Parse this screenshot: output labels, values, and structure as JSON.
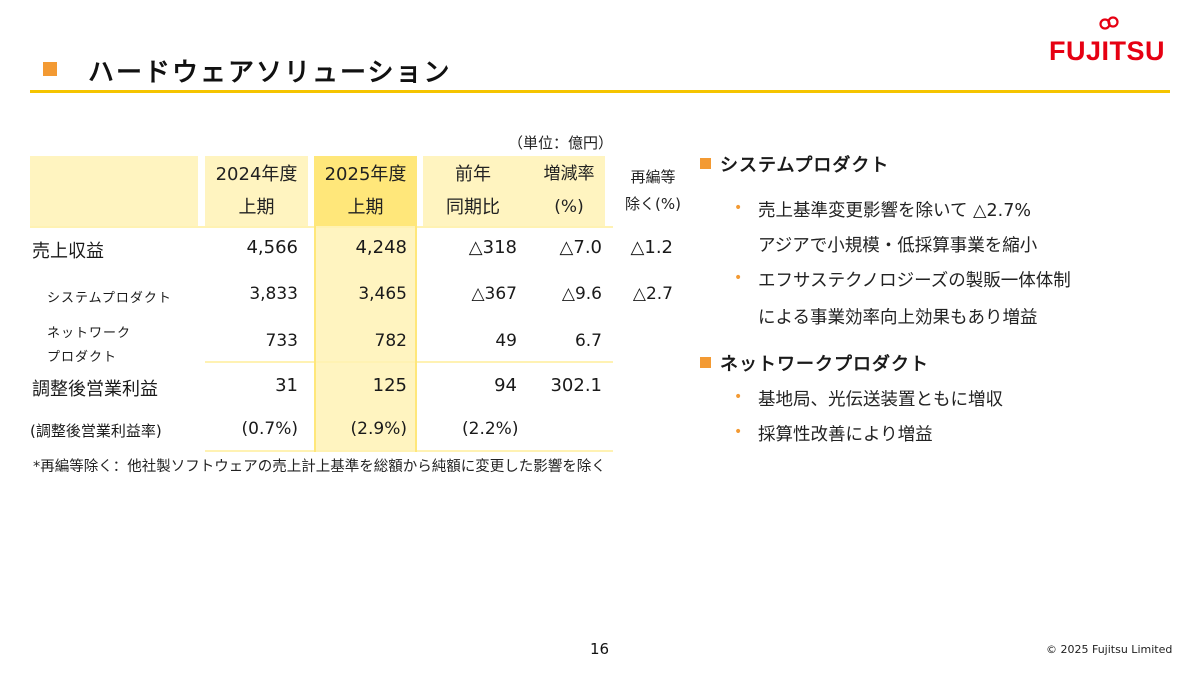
{
  "colors": {
    "accent_orange": "#f39a33",
    "accent_yellow": "#f5c400",
    "brand_red": "#e60012"
  },
  "header": {
    "title": "ハードウェアソリューション",
    "logo_text": "FUJITSU",
    "logo_icon": "infinity-icon"
  },
  "unit_note": "（単位：億円）",
  "table": {
    "columns": [
      {
        "line1": "2024年度",
        "line2": "上期"
      },
      {
        "line1": "2025年度",
        "line2": "上期"
      },
      {
        "line1": "前年",
        "line2": "同期比"
      },
      {
        "line1": "増減率",
        "line2": "(%)"
      },
      {
        "line1": "再編等",
        "line2": "除く(%)"
      }
    ],
    "rows": [
      {
        "label": "売上収益",
        "values": [
          "4,566",
          "4,248",
          "△318",
          "△7.0",
          "△1.2"
        ]
      },
      {
        "label": "システムプロダクト",
        "values": [
          "3,833",
          "3,465",
          "△367",
          "△9.6",
          "△2.7"
        ]
      },
      {
        "label_line1": "ネットワーク",
        "label_line2": "プロダクト",
        "values": [
          "733",
          "782",
          "49",
          "6.7",
          ""
        ]
      },
      {
        "label": "調整後営業利益",
        "values": [
          "31",
          "125",
          "94",
          "302.1",
          ""
        ]
      },
      {
        "label": "(調整後営業利益率)",
        "values": [
          "(0.7%)",
          "(2.9%)",
          "(2.2%)",
          "",
          ""
        ]
      }
    ],
    "footnote": "*再編等除く：他社製ソフトウェアの売上計上基準を総額から純額に変更した影響を除く"
  },
  "sections": [
    {
      "heading": "システムプロダクト",
      "bullets": [
        {
          "line1": "売上基準変更影響を除いて △2.7%",
          "line2": "アジアで小規模・低採算事業を縮小"
        },
        {
          "line1": "エフサステクノロジーズの製販一体体制",
          "line2": "による事業効率向上効果もあり増益"
        }
      ]
    },
    {
      "heading": "ネットワークプロダクト",
      "bullets": [
        {
          "line1": "基地局、光伝送装置ともに増収"
        },
        {
          "line1": "採算性改善により増益"
        }
      ]
    }
  ],
  "footer": {
    "page_number": "16",
    "copyright": "© 2025 Fujitsu Limited"
  }
}
